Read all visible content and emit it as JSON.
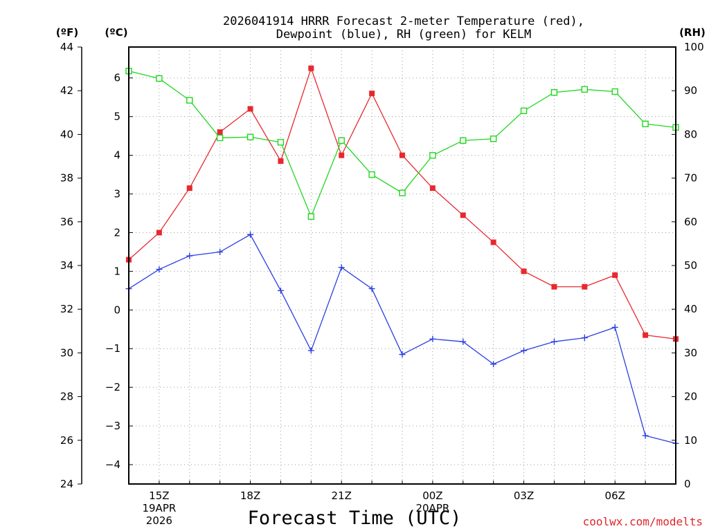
{
  "chart_data": {
    "type": "line",
    "title_line1": "2026041914 HRRR Forecast 2-meter Temperature (red),",
    "title_line2": "Dewpoint (blue), RH (green) for KELM",
    "xlabel": "Forecast Time (UTC)",
    "credit": "coolwx.com/modelts",
    "unit_labels": {
      "fahrenheit": "(ºF)",
      "celsius": "(ºC)",
      "rh": "(RH)"
    },
    "x_hours": [
      14,
      15,
      16,
      17,
      18,
      19,
      20,
      21,
      22,
      23,
      24,
      25,
      26,
      27,
      28,
      29,
      30,
      31,
      32
    ],
    "xlim": [
      14,
      32
    ],
    "x_ticks": [
      {
        "hour": 15,
        "lines": [
          "15Z",
          "19APR",
          "2026"
        ]
      },
      {
        "hour": 18,
        "lines": [
          "18Z"
        ]
      },
      {
        "hour": 21,
        "lines": [
          "21Z"
        ]
      },
      {
        "hour": 24,
        "lines": [
          "00Z",
          "20APR"
        ]
      },
      {
        "hour": 27,
        "lines": [
          "03Z"
        ]
      },
      {
        "hour": 30,
        "lines": [
          "06Z"
        ]
      }
    ],
    "celsius_axis": {
      "lim": [
        -4.5,
        6.8
      ],
      "ticks": [
        "-4",
        "-3",
        "-2",
        "-1",
        "0",
        "1",
        "2",
        "3",
        "4",
        "5",
        "6"
      ]
    },
    "fahrenheit_axis": {
      "lim": [
        24,
        44
      ],
      "ticks": [
        "24",
        "26",
        "28",
        "30",
        "32",
        "34",
        "36",
        "38",
        "40",
        "42",
        "44"
      ]
    },
    "rh_axis": {
      "lim": [
        0,
        100
      ],
      "ticks": [
        "0",
        "10",
        "20",
        "30",
        "40",
        "50",
        "60",
        "70",
        "80",
        "90",
        "100"
      ]
    },
    "series": [
      {
        "name": "2-meter Temperature",
        "axis": "celsius",
        "color": "#e8282e",
        "marker": "filled-square",
        "values": [
          1.3,
          2.0,
          3.15,
          4.6,
          5.2,
          3.85,
          6.25,
          4.0,
          5.6,
          4.0,
          3.15,
          2.45,
          1.75,
          1.0,
          0.6,
          0.6,
          0.9,
          -0.65,
          -0.75
        ]
      },
      {
        "name": "Dewpoint",
        "axis": "celsius",
        "color": "#2a3ee0",
        "marker": "plus",
        "values": [
          0.55,
          1.05,
          1.4,
          1.5,
          1.95,
          0.5,
          -1.05,
          1.1,
          0.55,
          -1.15,
          -0.75,
          -0.82,
          -1.4,
          -1.05,
          -0.82,
          -0.72,
          -0.45,
          -3.25,
          -3.45
        ]
      },
      {
        "name": "RH",
        "axis": "rh",
        "color": "#21d61f",
        "marker": "open-square",
        "values": [
          94.5,
          92.8,
          87.8,
          79.2,
          79.4,
          78.2,
          61.2,
          78.6,
          70.8,
          66.6,
          75.2,
          78.6,
          79.0,
          85.4,
          89.6,
          90.3,
          89.8,
          82.4,
          81.6
        ]
      }
    ]
  }
}
